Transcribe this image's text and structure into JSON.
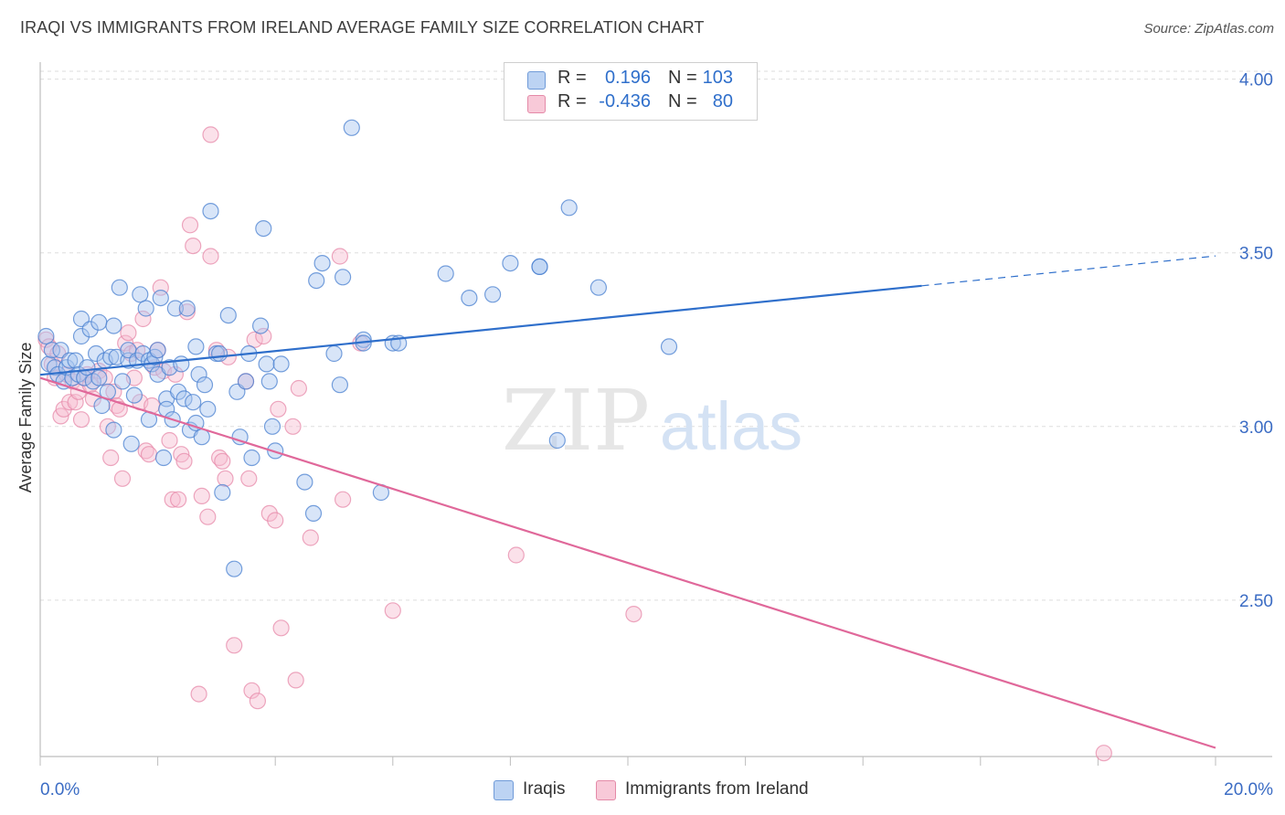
{
  "title": "IRAQI VS IMMIGRANTS FROM IRELAND AVERAGE FAMILY SIZE CORRELATION CHART",
  "source": "Source: ZipAtlas.com",
  "watermark": {
    "zip": "ZIP",
    "atlas": "atlas"
  },
  "legend": {
    "rows": [
      {
        "r_label": "R =",
        "r_value": "0.196",
        "n_label": "N =",
        "n_value": "103"
      },
      {
        "r_label": "R =",
        "r_value": "-0.436",
        "n_label": "N =",
        "n_value": "80"
      }
    ]
  },
  "bottom_legend": [
    "Iraqis",
    "Immigrants from Ireland"
  ],
  "colors": {
    "blue": "#4a80d0",
    "blue_fill": "#a8c6ef",
    "blue_line": "#2f6fcb",
    "pink": "#e78aa9",
    "pink_fill": "#f6bcd0",
    "pink_line": "#e0689a",
    "tick_text": "#3b6cc4",
    "grid": "#dddddd"
  },
  "chart_data": {
    "type": "scatter",
    "title": "IRAQI VS IMMIGRANTS FROM IRELAND AVERAGE FAMILY SIZE CORRELATION CHART",
    "xlabel": "",
    "ylabel": "Average Family Size",
    "xlim": [
      0,
      20
    ],
    "ylim": [
      2.05,
      4.07
    ],
    "x_tick_labels": [
      "0.0%",
      "20.0%"
    ],
    "y_ticks": [
      2.5,
      3.0,
      3.5,
      4.0
    ],
    "y_tick_labels": [
      "2.50",
      "3.00",
      "3.50",
      "4.00"
    ],
    "grid": true,
    "series": [
      {
        "name": "Iraqis",
        "r": 0.196,
        "n": 103,
        "trend": {
          "x0": 0,
          "y0": 3.149,
          "x1": 15.0,
          "y1": 3.405,
          "dash_to_x": 20,
          "dash_to_y": 3.491
        },
        "points": [
          [
            0.1,
            3.26
          ],
          [
            0.15,
            3.18
          ],
          [
            0.2,
            3.22
          ],
          [
            0.25,
            3.17
          ],
          [
            0.3,
            3.15
          ],
          [
            0.35,
            3.22
          ],
          [
            0.4,
            3.13
          ],
          [
            0.45,
            3.17
          ],
          [
            0.5,
            3.19
          ],
          [
            0.55,
            3.14
          ],
          [
            0.6,
            3.19
          ],
          [
            0.65,
            3.15
          ],
          [
            0.7,
            3.26
          ],
          [
            0.7,
            3.31
          ],
          [
            0.75,
            3.14
          ],
          [
            0.8,
            3.17
          ],
          [
            0.85,
            3.28
          ],
          [
            0.9,
            3.13
          ],
          [
            0.95,
            3.21
          ],
          [
            1.0,
            3.14
          ],
          [
            1.0,
            3.3
          ],
          [
            1.05,
            3.06
          ],
          [
            1.1,
            3.19
          ],
          [
            1.15,
            3.1
          ],
          [
            1.2,
            3.2
          ],
          [
            1.25,
            3.29
          ],
          [
            1.25,
            2.99
          ],
          [
            1.3,
            3.2
          ],
          [
            1.35,
            3.4
          ],
          [
            1.4,
            3.13
          ],
          [
            1.5,
            3.19
          ],
          [
            1.5,
            3.22
          ],
          [
            1.55,
            2.95
          ],
          [
            1.6,
            3.09
          ],
          [
            1.65,
            3.19
          ],
          [
            1.7,
            3.38
          ],
          [
            1.75,
            3.21
          ],
          [
            1.8,
            3.34
          ],
          [
            1.85,
            3.19
          ],
          [
            1.85,
            3.02
          ],
          [
            1.9,
            3.18
          ],
          [
            1.95,
            3.2
          ],
          [
            2.0,
            3.22
          ],
          [
            2.0,
            3.15
          ],
          [
            2.05,
            3.37
          ],
          [
            2.1,
            2.91
          ],
          [
            2.15,
            3.08
          ],
          [
            2.15,
            3.05
          ],
          [
            2.2,
            3.17
          ],
          [
            2.25,
            3.02
          ],
          [
            2.3,
            3.34
          ],
          [
            2.35,
            3.1
          ],
          [
            2.4,
            3.18
          ],
          [
            2.45,
            3.08
          ],
          [
            2.5,
            3.34
          ],
          [
            2.55,
            2.99
          ],
          [
            2.6,
            3.07
          ],
          [
            2.65,
            3.01
          ],
          [
            2.65,
            3.23
          ],
          [
            2.7,
            3.15
          ],
          [
            2.75,
            2.97
          ],
          [
            2.8,
            3.12
          ],
          [
            2.85,
            3.05
          ],
          [
            2.9,
            3.62
          ],
          [
            3.0,
            3.21
          ],
          [
            3.05,
            3.21
          ],
          [
            3.1,
            2.81
          ],
          [
            3.2,
            3.32
          ],
          [
            3.3,
            2.59
          ],
          [
            3.35,
            3.1
          ],
          [
            3.4,
            2.97
          ],
          [
            3.5,
            3.13
          ],
          [
            3.55,
            3.21
          ],
          [
            3.6,
            2.91
          ],
          [
            3.75,
            3.29
          ],
          [
            3.8,
            3.57
          ],
          [
            3.85,
            3.18
          ],
          [
            3.9,
            3.13
          ],
          [
            3.95,
            3.0
          ],
          [
            4.0,
            2.93
          ],
          [
            4.1,
            3.18
          ],
          [
            4.5,
            2.84
          ],
          [
            4.65,
            2.75
          ],
          [
            4.7,
            3.42
          ],
          [
            4.8,
            3.47
          ],
          [
            5.0,
            3.21
          ],
          [
            5.1,
            3.12
          ],
          [
            5.15,
            3.43
          ],
          [
            5.3,
            3.86
          ],
          [
            5.5,
            3.25
          ],
          [
            5.5,
            3.24
          ],
          [
            5.8,
            2.81
          ],
          [
            6.0,
            3.24
          ],
          [
            6.1,
            3.24
          ],
          [
            6.9,
            3.44
          ],
          [
            7.3,
            3.37
          ],
          [
            7.7,
            3.38
          ],
          [
            8.0,
            3.47
          ],
          [
            8.5,
            3.46
          ],
          [
            8.5,
            3.46
          ],
          [
            8.8,
            2.96
          ],
          [
            9.0,
            3.63
          ],
          [
            9.5,
            3.4
          ],
          [
            10.7,
            3.23
          ]
        ]
      },
      {
        "name": "Immigrants from Ireland",
        "r": -0.436,
        "n": 80,
        "trend": {
          "x0": 0,
          "y0": 3.14,
          "x1": 20,
          "y1": 2.075
        },
        "points": [
          [
            0.1,
            3.25
          ],
          [
            0.15,
            3.23
          ],
          [
            0.2,
            3.18
          ],
          [
            0.25,
            3.14
          ],
          [
            0.3,
            3.21
          ],
          [
            0.35,
            3.03
          ],
          [
            0.4,
            3.05
          ],
          [
            0.45,
            3.15
          ],
          [
            0.5,
            3.07
          ],
          [
            0.55,
            3.13
          ],
          [
            0.6,
            3.07
          ],
          [
            0.65,
            3.1
          ],
          [
            0.7,
            3.02
          ],
          [
            0.75,
            3.14
          ],
          [
            0.8,
            3.15
          ],
          [
            0.85,
            3.12
          ],
          [
            0.9,
            3.08
          ],
          [
            1.0,
            3.16
          ],
          [
            1.1,
            3.14
          ],
          [
            1.15,
            3.0
          ],
          [
            1.2,
            2.91
          ],
          [
            1.25,
            3.1
          ],
          [
            1.3,
            3.06
          ],
          [
            1.35,
            3.05
          ],
          [
            1.4,
            2.85
          ],
          [
            1.45,
            3.24
          ],
          [
            1.5,
            3.27
          ],
          [
            1.55,
            3.21
          ],
          [
            1.6,
            3.14
          ],
          [
            1.65,
            3.22
          ],
          [
            1.7,
            3.07
          ],
          [
            1.75,
            3.31
          ],
          [
            1.8,
            2.93
          ],
          [
            1.85,
            2.92
          ],
          [
            1.9,
            3.06
          ],
          [
            1.95,
            3.17
          ],
          [
            2.0,
            3.22
          ],
          [
            2.05,
            3.4
          ],
          [
            2.1,
            3.16
          ],
          [
            2.2,
            2.96
          ],
          [
            2.25,
            2.79
          ],
          [
            2.3,
            3.15
          ],
          [
            2.35,
            2.79
          ],
          [
            2.4,
            2.92
          ],
          [
            2.45,
            2.9
          ],
          [
            2.5,
            3.33
          ],
          [
            2.55,
            3.58
          ],
          [
            2.6,
            3.52
          ],
          [
            2.7,
            2.23
          ],
          [
            2.75,
            2.8
          ],
          [
            2.85,
            2.74
          ],
          [
            2.9,
            3.84
          ],
          [
            2.9,
            3.49
          ],
          [
            3.0,
            3.22
          ],
          [
            3.05,
            2.91
          ],
          [
            3.1,
            2.9
          ],
          [
            3.15,
            2.85
          ],
          [
            3.2,
            3.2
          ],
          [
            3.3,
            2.37
          ],
          [
            3.5,
            3.13
          ],
          [
            3.55,
            2.85
          ],
          [
            3.6,
            2.24
          ],
          [
            3.65,
            3.25
          ],
          [
            3.7,
            2.21
          ],
          [
            3.8,
            3.26
          ],
          [
            3.9,
            2.75
          ],
          [
            4.0,
            2.73
          ],
          [
            4.05,
            3.05
          ],
          [
            4.1,
            2.42
          ],
          [
            4.3,
            3.0
          ],
          [
            4.35,
            2.27
          ],
          [
            4.4,
            3.11
          ],
          [
            4.6,
            2.68
          ],
          [
            5.1,
            3.49
          ],
          [
            5.15,
            2.79
          ],
          [
            5.45,
            3.24
          ],
          [
            6.0,
            2.47
          ],
          [
            8.1,
            2.63
          ],
          [
            10.1,
            2.46
          ],
          [
            18.1,
            2.06
          ]
        ]
      }
    ]
  }
}
